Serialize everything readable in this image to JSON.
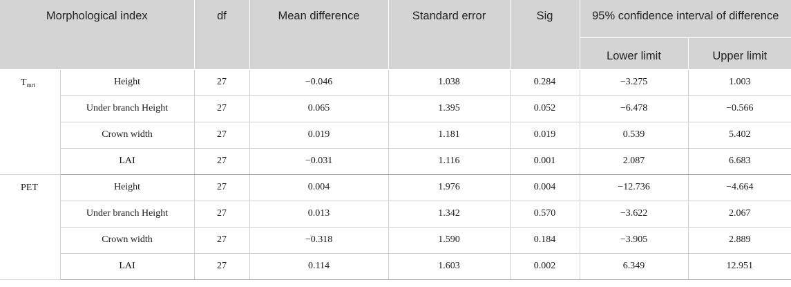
{
  "header": {
    "morphological_index": "Morphological index",
    "df": "df",
    "mean_difference": "Mean difference",
    "standard_error": "Standard error",
    "sig": "Sig",
    "ci": "95% confidence interval of difference",
    "lower_limit": "Lower limit",
    "upper_limit": "Upper limit"
  },
  "groups": [
    {
      "label_main": "T",
      "label_sub": "mrt",
      "rows": [
        {
          "index": "Height",
          "df": "27",
          "mean_difference": "−0.046",
          "standard_error": "1.038",
          "sig": "0.284",
          "lower": "−3.275",
          "upper": "1.003"
        },
        {
          "index": "Under branch Height",
          "df": "27",
          "mean_difference": "0.065",
          "standard_error": "1.395",
          "sig": "0.052",
          "lower": "−6.478",
          "upper": "−0.566"
        },
        {
          "index": "Crown width",
          "df": "27",
          "mean_difference": "0.019",
          "standard_error": "1.181",
          "sig": "0.019",
          "lower": "0.539",
          "upper": "5.402"
        },
        {
          "index": "LAI",
          "df": "27",
          "mean_difference": "−0.031",
          "standard_error": "1.116",
          "sig": "0.001",
          "lower": "2.087",
          "upper": "6.683"
        }
      ]
    },
    {
      "label_main": "PET",
      "label_sub": "",
      "rows": [
        {
          "index": "Height",
          "df": "27",
          "mean_difference": "0.004",
          "standard_error": "1.976",
          "sig": "0.004",
          "lower": "−12.736",
          "upper": "−4.664"
        },
        {
          "index": "Under branch Height",
          "df": "27",
          "mean_difference": "0.013",
          "standard_error": "1.342",
          "sig": "0.570",
          "lower": "−3.622",
          "upper": "2.067"
        },
        {
          "index": "Crown width",
          "df": "27",
          "mean_difference": "−0.318",
          "standard_error": "1.590",
          "sig": "0.184",
          "lower": "−3.905",
          "upper": "2.889"
        },
        {
          "index": "LAI",
          "df": "27",
          "mean_difference": "0.114",
          "standard_error": "1.603",
          "sig": "0.002",
          "lower": "6.349",
          "upper": "12.951"
        }
      ]
    }
  ]
}
